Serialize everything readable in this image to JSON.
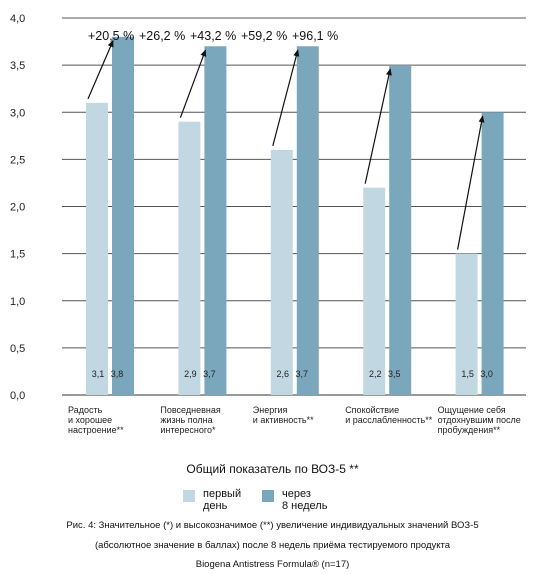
{
  "chart_data": {
    "type": "bar",
    "y_ticks": [
      "4,0",
      "3,5",
      "3,0",
      "2,5",
      "2,0",
      "1,5",
      "1,0",
      "0,5",
      "0,0"
    ],
    "ylim": [
      0,
      4.0
    ],
    "grid": true,
    "categories": [
      [
        "Радость",
        "и хорошее",
        "настроение**"
      ],
      [
        "Повседневная",
        "жизнь полна",
        "интересного*"
      ],
      [
        "Энергия",
        "и активность**"
      ],
      [
        "Спокойствие",
        "и расслабленность**"
      ],
      [
        "Ощущение себя",
        "отдохнувшим после",
        "пробуждения**"
      ]
    ],
    "series": [
      {
        "name": "первый\nдень",
        "color": "#c1d7e1",
        "values": [
          3.1,
          2.9,
          2.6,
          2.2,
          1.5
        ],
        "labels": [
          "3,1",
          "2,9",
          "2,6",
          "2,2",
          "1,5"
        ]
      },
      {
        "name": "через\n8 недель",
        "color": "#7ba7bd",
        "values": [
          3.8,
          3.7,
          3.7,
          3.5,
          3.0
        ],
        "labels": [
          "3,8",
          "3,7",
          "3,7",
          "3,5",
          "3,0"
        ]
      }
    ],
    "annotations": [
      "+20,5 %",
      "+26,2 %",
      "+43,2 %",
      "+59,2 %",
      "+96,1 %"
    ],
    "legend_title": "Общий показатель по ВОЗ-5 **",
    "legend_position": "bottom"
  },
  "caption": [
    "Рис. 4: Значительное (*) и высокозначимое (**) увеличение индивидуальных значений ВОЗ-5",
    "(абсолютное значение в баллах) после 8 недель приёма тестируемого продукта",
    "Biogena Antistress Formula® (n=17)"
  ]
}
